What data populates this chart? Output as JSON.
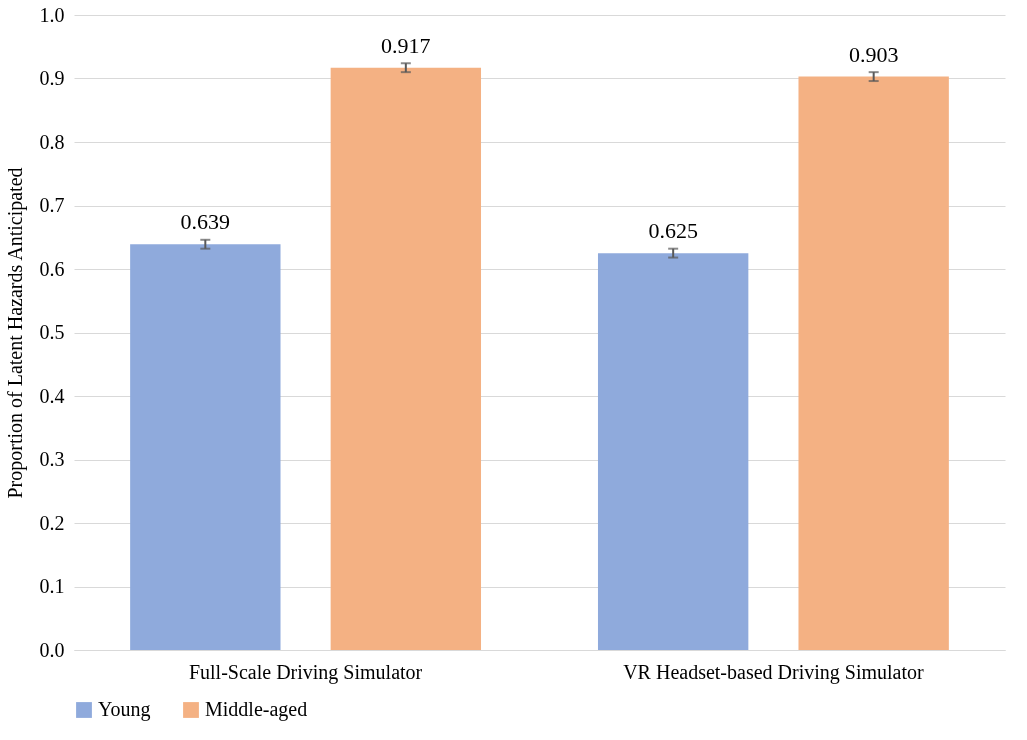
{
  "chart_data": {
    "type": "bar",
    "ylabel": "Proportion of Latent Hazards Anticipated",
    "categories": [
      "Full-Scale Driving Simulator",
      "VR Headset-based Driving Simulator"
    ],
    "series": [
      {
        "name": "Young",
        "color": "#8faadc",
        "values": [
          0.639,
          0.625
        ],
        "errors": [
          0.007,
          0.007
        ]
      },
      {
        "name": "Middle-aged",
        "color": "#f4b183",
        "values": [
          0.917,
          0.903
        ],
        "errors": [
          0.007,
          0.007
        ]
      }
    ],
    "ylim": [
      0,
      1.0
    ],
    "yticks": [
      {
        "value": 0,
        "label": "0.0"
      },
      0.1,
      0.2,
      0.3,
      0.4,
      0.5,
      0.6,
      0.7,
      0.8,
      0.9,
      {
        "value": 1.0,
        "label": "1.0"
      }
    ],
    "grid": "y",
    "legend": "bottom",
    "data_labels": true
  }
}
